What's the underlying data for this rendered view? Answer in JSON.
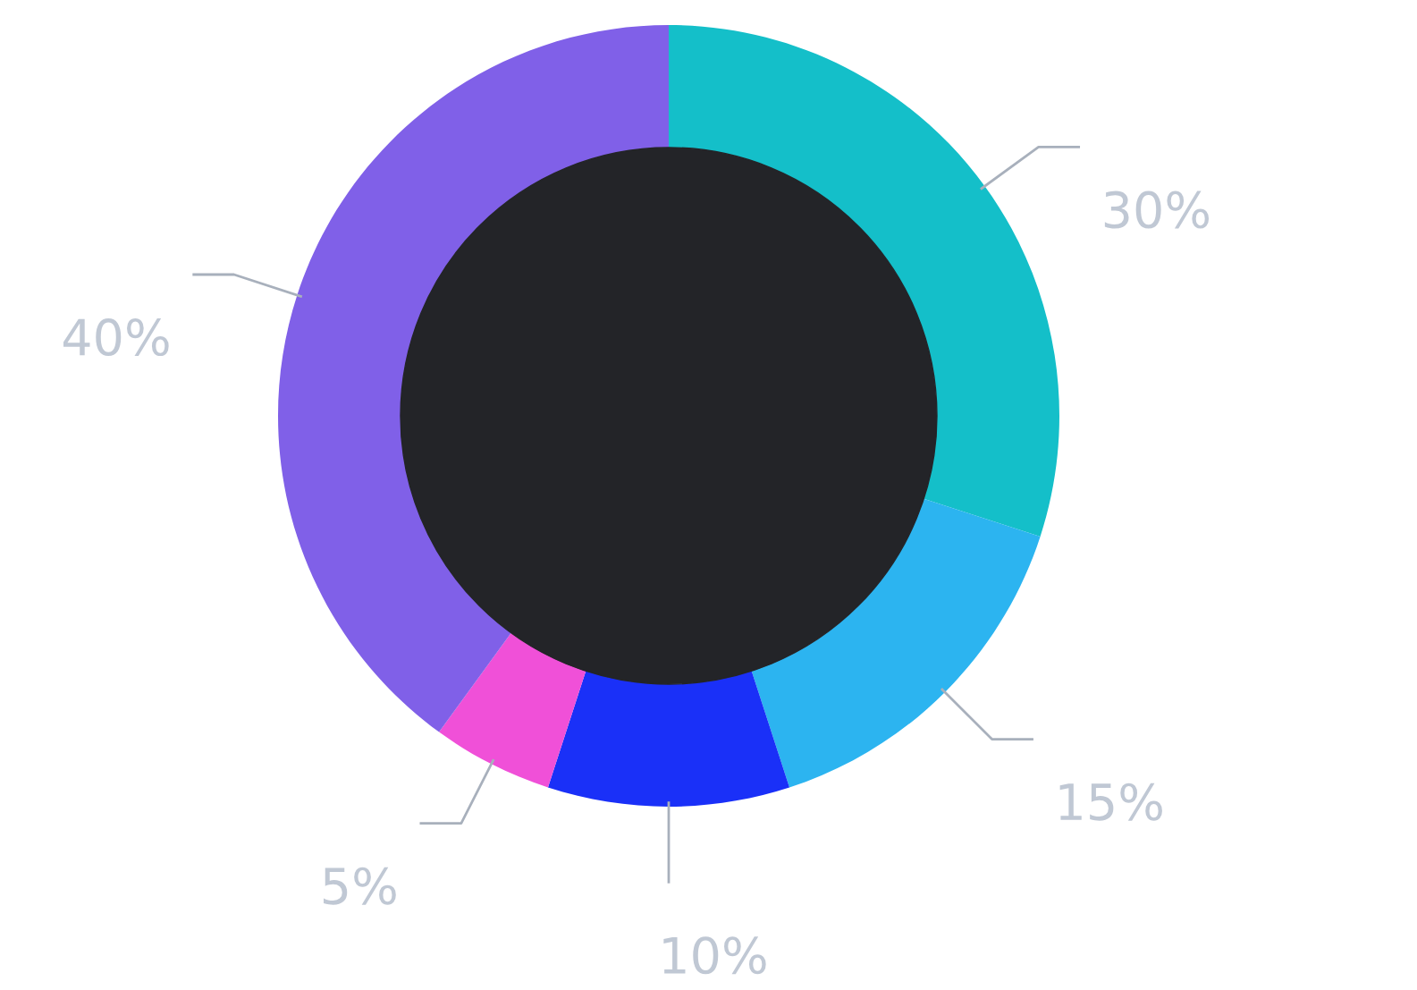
{
  "chart_data": {
    "type": "donut",
    "categories": [
      null,
      null,
      null,
      null,
      null
    ],
    "values": [
      30,
      15,
      10,
      5,
      40
    ],
    "colors": [
      "#14bfc9",
      "#2cb4f0",
      "#1a30f8",
      "#f050d8",
      "#8060e8"
    ],
    "value_labels": [
      "30%",
      "15%",
      "10%",
      "5%",
      "40%"
    ]
  }
}
